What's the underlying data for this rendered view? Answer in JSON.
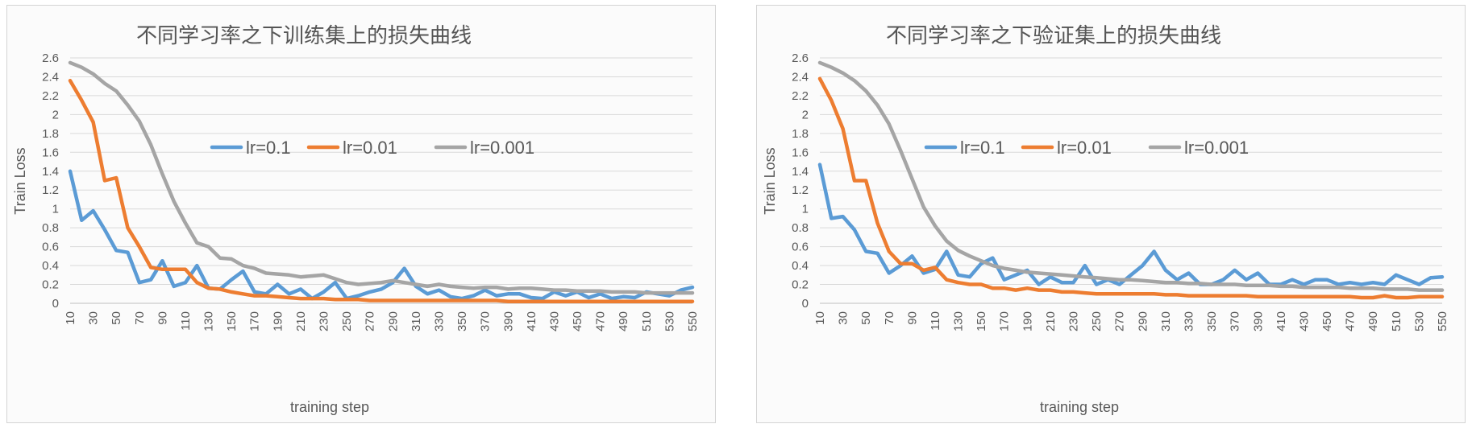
{
  "colors": {
    "lr_0_1": "#5b9bd5",
    "lr_0_01": "#ed7d31",
    "lr_0_001": "#a5a5a5"
  },
  "chart_data": [
    {
      "type": "line",
      "title": "不同学习率之下训练集上的损失曲线",
      "xlabel": "training   step",
      "ylabel": "Train  Loss",
      "ylim": [
        0,
        2.6
      ],
      "yticks": [
        "0",
        "0.2",
        "0.4",
        "0.6",
        "0.8",
        "1",
        "1.2",
        "1.4",
        "1.6",
        "1.8",
        "2",
        "2.2",
        "2.4",
        "2.6"
      ],
      "x": [
        10,
        20,
        30,
        40,
        50,
        60,
        70,
        80,
        90,
        100,
        110,
        120,
        130,
        140,
        150,
        160,
        170,
        180,
        190,
        200,
        210,
        220,
        230,
        240,
        250,
        260,
        270,
        280,
        290,
        300,
        310,
        320,
        330,
        340,
        350,
        360,
        370,
        380,
        390,
        400,
        410,
        420,
        430,
        440,
        450,
        460,
        470,
        480,
        490,
        500,
        510,
        520,
        530,
        540,
        550
      ],
      "xtick_labels": [
        "10",
        "30",
        "50",
        "70",
        "90",
        "110",
        "130",
        "150",
        "170",
        "190",
        "210",
        "230",
        "250",
        "270",
        "290",
        "310",
        "330",
        "350",
        "370",
        "390",
        "410",
        "430",
        "450",
        "470",
        "490",
        "510",
        "530",
        "550"
      ],
      "grid": true,
      "legend_position": "upper-middle",
      "series": [
        {
          "name": "lr=0.1",
          "color": "#5b9bd5",
          "values": [
            1.4,
            0.88,
            0.98,
            0.78,
            0.56,
            0.54,
            0.22,
            0.25,
            0.45,
            0.18,
            0.22,
            0.4,
            0.16,
            0.15,
            0.25,
            0.34,
            0.12,
            0.1,
            0.2,
            0.1,
            0.15,
            0.05,
            0.12,
            0.22,
            0.05,
            0.08,
            0.12,
            0.15,
            0.22,
            0.37,
            0.18,
            0.1,
            0.14,
            0.07,
            0.05,
            0.08,
            0.14,
            0.08,
            0.1,
            0.1,
            0.06,
            0.05,
            0.12,
            0.08,
            0.12,
            0.06,
            0.1,
            0.05,
            0.07,
            0.06,
            0.12,
            0.1,
            0.08,
            0.14,
            0.17
          ]
        },
        {
          "name": "lr=0.01",
          "color": "#ed7d31",
          "values": [
            2.36,
            2.15,
            1.92,
            1.3,
            1.33,
            0.8,
            0.6,
            0.38,
            0.36,
            0.36,
            0.36,
            0.22,
            0.16,
            0.15,
            0.12,
            0.1,
            0.08,
            0.08,
            0.07,
            0.06,
            0.05,
            0.05,
            0.05,
            0.04,
            0.04,
            0.04,
            0.03,
            0.03,
            0.03,
            0.03,
            0.03,
            0.03,
            0.03,
            0.03,
            0.03,
            0.03,
            0.03,
            0.03,
            0.02,
            0.02,
            0.02,
            0.02,
            0.02,
            0.02,
            0.02,
            0.02,
            0.02,
            0.02,
            0.02,
            0.02,
            0.02,
            0.02,
            0.02,
            0.02,
            0.02
          ]
        },
        {
          "name": "lr=0.001",
          "color": "#a5a5a5",
          "values": [
            2.55,
            2.5,
            2.43,
            2.33,
            2.25,
            2.1,
            1.93,
            1.68,
            1.37,
            1.08,
            0.85,
            0.64,
            0.6,
            0.48,
            0.47,
            0.4,
            0.37,
            0.32,
            0.31,
            0.3,
            0.28,
            0.29,
            0.3,
            0.26,
            0.22,
            0.2,
            0.21,
            0.22,
            0.24,
            0.22,
            0.2,
            0.18,
            0.2,
            0.18,
            0.17,
            0.16,
            0.17,
            0.17,
            0.15,
            0.16,
            0.16,
            0.15,
            0.14,
            0.14,
            0.13,
            0.13,
            0.13,
            0.12,
            0.12,
            0.12,
            0.11,
            0.11,
            0.11,
            0.11,
            0.11
          ]
        }
      ]
    },
    {
      "type": "line",
      "title": "不同学习率之下验证集上的损失曲线",
      "xlabel": "training   step",
      "ylabel": "Train  Loss",
      "ylim": [
        0,
        2.6
      ],
      "yticks": [
        "0",
        "0.2",
        "0.4",
        "0.6",
        "0.8",
        "1",
        "1.2",
        "1.4",
        "1.6",
        "1.8",
        "2",
        "2.2",
        "2.4",
        "2.6"
      ],
      "x": [
        10,
        20,
        30,
        40,
        50,
        60,
        70,
        80,
        90,
        100,
        110,
        120,
        130,
        140,
        150,
        160,
        170,
        180,
        190,
        200,
        210,
        220,
        230,
        240,
        250,
        260,
        270,
        280,
        290,
        300,
        310,
        320,
        330,
        340,
        350,
        360,
        370,
        380,
        390,
        400,
        410,
        420,
        430,
        440,
        450,
        460,
        470,
        480,
        490,
        500,
        510,
        520,
        530,
        540,
        550
      ],
      "xtick_labels": [
        "10",
        "30",
        "50",
        "70",
        "90",
        "110",
        "130",
        "150",
        "170",
        "190",
        "210",
        "230",
        "250",
        "270",
        "290",
        "310",
        "330",
        "350",
        "370",
        "390",
        "410",
        "430",
        "450",
        "470",
        "490",
        "510",
        "530",
        "550"
      ],
      "grid": true,
      "legend_position": "upper-right",
      "series": [
        {
          "name": "lr=0.1",
          "color": "#5b9bd5",
          "values": [
            1.47,
            0.9,
            0.92,
            0.78,
            0.55,
            0.53,
            0.32,
            0.4,
            0.5,
            0.32,
            0.36,
            0.55,
            0.3,
            0.28,
            0.42,
            0.48,
            0.25,
            0.3,
            0.35,
            0.2,
            0.28,
            0.22,
            0.22,
            0.4,
            0.2,
            0.25,
            0.2,
            0.3,
            0.4,
            0.55,
            0.35,
            0.25,
            0.32,
            0.2,
            0.2,
            0.25,
            0.35,
            0.25,
            0.32,
            0.2,
            0.2,
            0.25,
            0.2,
            0.25,
            0.25,
            0.2,
            0.22,
            0.2,
            0.22,
            0.2,
            0.3,
            0.25,
            0.2,
            0.27,
            0.28
          ]
        },
        {
          "name": "lr=0.01",
          "color": "#ed7d31",
          "values": [
            2.38,
            2.15,
            1.85,
            1.3,
            1.3,
            0.85,
            0.55,
            0.42,
            0.42,
            0.35,
            0.38,
            0.25,
            0.22,
            0.2,
            0.2,
            0.16,
            0.16,
            0.14,
            0.16,
            0.14,
            0.14,
            0.12,
            0.12,
            0.11,
            0.1,
            0.1,
            0.1,
            0.1,
            0.1,
            0.1,
            0.09,
            0.09,
            0.08,
            0.08,
            0.08,
            0.08,
            0.08,
            0.08,
            0.07,
            0.07,
            0.07,
            0.07,
            0.07,
            0.07,
            0.07,
            0.07,
            0.07,
            0.06,
            0.06,
            0.08,
            0.06,
            0.06,
            0.07,
            0.07,
            0.07
          ]
        },
        {
          "name": "lr=0.001",
          "color": "#a5a5a5",
          "values": [
            2.55,
            2.5,
            2.44,
            2.36,
            2.25,
            2.1,
            1.9,
            1.62,
            1.32,
            1.02,
            0.82,
            0.66,
            0.56,
            0.5,
            0.45,
            0.4,
            0.37,
            0.35,
            0.33,
            0.32,
            0.31,
            0.3,
            0.29,
            0.28,
            0.27,
            0.26,
            0.25,
            0.25,
            0.24,
            0.23,
            0.22,
            0.22,
            0.21,
            0.21,
            0.2,
            0.2,
            0.2,
            0.19,
            0.19,
            0.19,
            0.18,
            0.18,
            0.17,
            0.17,
            0.17,
            0.17,
            0.16,
            0.16,
            0.16,
            0.15,
            0.15,
            0.15,
            0.14,
            0.14,
            0.14
          ]
        }
      ]
    }
  ]
}
